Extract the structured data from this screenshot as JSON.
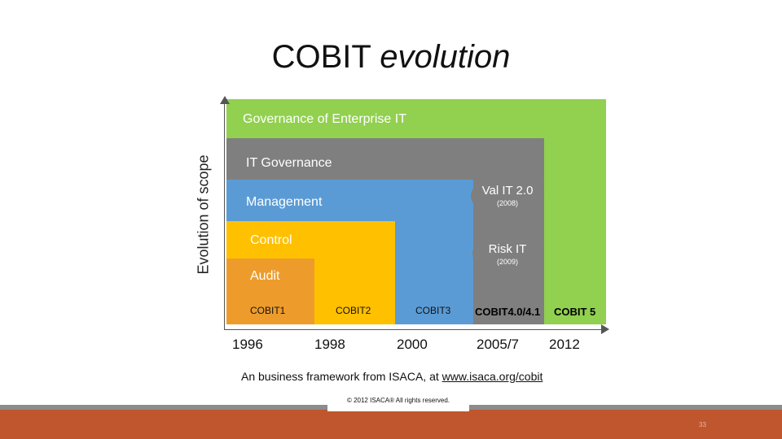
{
  "title": {
    "main": "COBIT",
    "italic": "evolution"
  },
  "y_axis": {
    "label": "Evolution of scope"
  },
  "regions": {
    "governance_enterprise_it": "Governance of Enterprise IT",
    "it_governance": "IT Governance",
    "management": "Management",
    "control": "Control",
    "audit": "Audit"
  },
  "ovals": {
    "val_it": {
      "name": "Val IT 2.0",
      "year": "(2008)"
    },
    "risk_it": {
      "name": "Risk IT",
      "year": "(2009)"
    }
  },
  "versions": [
    "COBIT1",
    "COBIT2",
    "COBIT3",
    "COBIT4.0/4.1",
    "COBIT 5"
  ],
  "years": [
    "1996",
    "1998",
    "2000",
    "2005/7",
    "2012"
  ],
  "caption": {
    "prefix": "An business framework from ISACA, at ",
    "link": "www.isaca.org/cobit"
  },
  "copyright": "© 2012 ISACA® All rights reserved.",
  "page_number": "33",
  "colors": {
    "governance": "#92d050",
    "it_governance": "#7f7f7f",
    "management": "#5b9bd5",
    "control": "#ffc000",
    "audit": "#ed9c2b",
    "footer": "#c0562d"
  }
}
